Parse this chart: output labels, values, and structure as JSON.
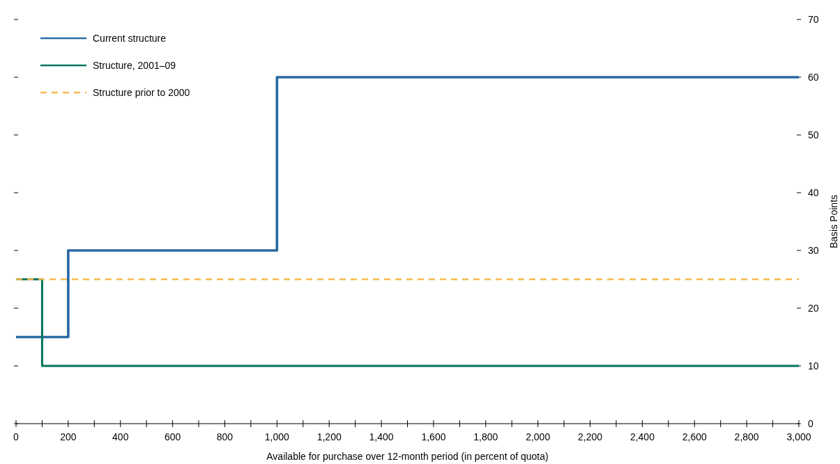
{
  "chart_data": {
    "type": "step",
    "xlabel": "Available for purchase over 12-month period (in percent of quota)",
    "y2label": "Basis Points",
    "legend": "top left",
    "grid": false,
    "xlim": [
      0,
      3000
    ],
    "xticks": [
      0,
      {
        "value": 100,
        "label": null
      },
      {
        "value": 200,
        "label": "200"
      },
      {
        "value": 300,
        "label": null
      },
      400,
      {
        "value": 500,
        "label": null
      },
      600,
      {
        "value": 700,
        "label": null
      },
      800,
      {
        "value": 900,
        "label": null
      },
      {
        "value": 1000,
        "label": "1,000"
      },
      {
        "value": 1100,
        "label": null
      },
      {
        "value": 1200,
        "label": "1,200"
      },
      {
        "value": 1300,
        "label": null
      },
      {
        "value": 1400,
        "label": "1,400"
      },
      {
        "value": 1500,
        "label": null
      },
      {
        "value": 1600,
        "label": "1,600"
      },
      {
        "value": 1700,
        "label": null
      },
      {
        "value": 1800,
        "label": "1,800"
      },
      {
        "value": 1900,
        "label": null
      },
      {
        "value": 2000,
        "label": "2,000"
      },
      {
        "value": 2100,
        "label": null
      },
      {
        "value": 2200,
        "label": "2,200"
      },
      {
        "value": 2300,
        "label": null
      },
      {
        "value": 2400,
        "label": "2,400"
      },
      {
        "value": 2500,
        "label": null
      },
      {
        "value": 2600,
        "label": "2,600"
      },
      {
        "value": 2700,
        "label": null
      },
      {
        "value": 2800,
        "label": "2,800"
      },
      {
        "value": 2900,
        "label": null
      },
      {
        "value": 3000,
        "label": "3,000"
      }
    ],
    "y2lim": [
      0,
      70
    ],
    "y2ticks": [
      0,
      10,
      20,
      30,
      40,
      50,
      60,
      70
    ],
    "series": [
      {
        "name": "Current structure",
        "color": "#2b6aa3",
        "axis": "y2",
        "line_style": "solid",
        "x": [
          0,
          200,
          1000,
          3000
        ],
        "values": [
          15,
          30,
          60,
          60
        ]
      },
      {
        "name": "Structure, 2001–09",
        "color": "#00775c",
        "axis": "y2",
        "line_style": "solid",
        "x": [
          0,
          100,
          3000
        ],
        "values": [
          25,
          10,
          10
        ]
      },
      {
        "name": "Structure prior to 2000",
        "color": "#f6b94c",
        "axis": "y2",
        "line_style": "dashed",
        "x": [
          0,
          3000
        ],
        "values": [
          25,
          25
        ]
      }
    ]
  }
}
